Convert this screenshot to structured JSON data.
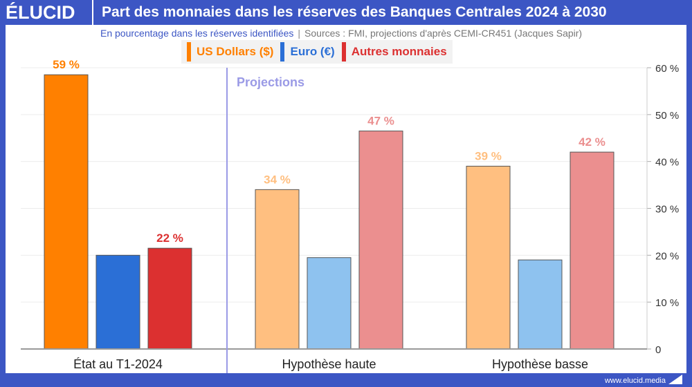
{
  "header": {
    "logo": "ÉLUCID",
    "title": "Part des monnaies dans les réserves des Banques Centrales 2024 à 2030"
  },
  "subtitle": {
    "text": "En pourcentage dans les réserves identifiées",
    "separator": "|",
    "sources": "Sources : FMI, projections d'après CEMI-CR451 (Jacques Sapir)"
  },
  "footer": {
    "url": "www.elucid.media"
  },
  "chart_data": {
    "type": "bar",
    "title": "Part des monnaies dans les réserves des Banques Centrales 2024 à 2030",
    "categories": [
      "État au T1-2024",
      "Hypothèse haute",
      "Hypothèse basse"
    ],
    "series": [
      {
        "name": "US Dollars ($)",
        "values": [
          58.5,
          34,
          39
        ],
        "labels": [
          "59 %",
          "34 %",
          "39 %"
        ],
        "color": "#ff8000",
        "projection_color": "#ffbf80"
      },
      {
        "name": "Euro (€)",
        "values": [
          20,
          19.5,
          19
        ],
        "labels": [
          "",
          "",
          ""
        ],
        "color": "#2b6fd6",
        "projection_color": "#8ec2ef"
      },
      {
        "name": "Autres monnaies",
        "values": [
          21.5,
          46.5,
          42
        ],
        "labels": [
          "22 %",
          "47 %",
          "42 %"
        ],
        "color": "#dc3030",
        "projection_color": "#eb8f8f"
      }
    ],
    "annotation": "Projections",
    "yticks": [
      "0",
      "10 %",
      "20 %",
      "30 %",
      "40 %",
      "50 %",
      "60 %"
    ],
    "ylim": [
      0,
      60
    ],
    "grid": true,
    "legend": "top",
    "y_axis_side": "right"
  }
}
